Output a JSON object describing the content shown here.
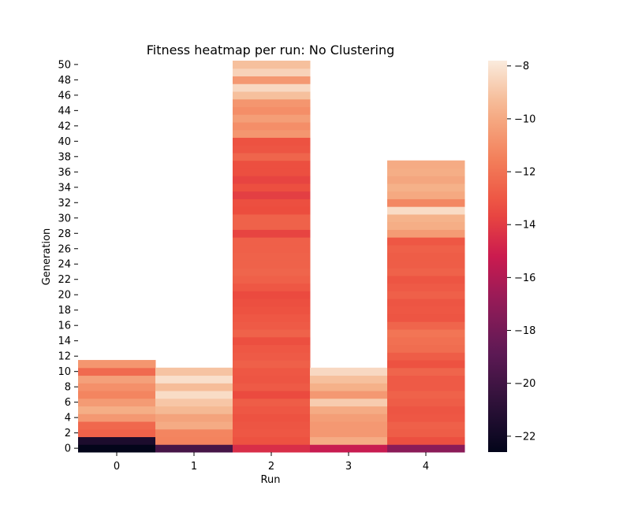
{
  "chart_data": {
    "type": "heatmap",
    "title": "Fitness heatmap per run: No Clustering",
    "xlabel": "Run",
    "ylabel": "Generation",
    "x_categories": [
      "0",
      "1",
      "2",
      "3",
      "4"
    ],
    "y_ticks": [
      0,
      2,
      4,
      6,
      8,
      10,
      12,
      14,
      16,
      18,
      20,
      22,
      24,
      26,
      28,
      30,
      32,
      34,
      36,
      38,
      40,
      42,
      44,
      46,
      48,
      50
    ],
    "y_range": [
      0,
      50
    ],
    "colorbar": {
      "colormap": "rocket",
      "range": [
        -22.6,
        -7.8
      ],
      "ticks": [
        -22,
        -20,
        -18,
        -16,
        -14,
        -12,
        -10,
        -8
      ],
      "tick_labels": [
        "−22",
        "−20",
        "−18",
        "−16",
        "−14",
        "−12",
        "−10",
        "−8"
      ]
    },
    "series": [
      {
        "name": "0",
        "values": [
          -22.6,
          -21.5,
          -12.6,
          -12.4,
          -10.6,
          -9.8,
          -10.5,
          -11.3,
          -10.9,
          -10.3,
          -12.3,
          -10.7
        ]
      },
      {
        "name": "1",
        "values": [
          -19.8,
          -11.4,
          -11.3,
          -9.9,
          -10.2,
          -9.4,
          -9.0,
          -8.3,
          -9.3,
          -8.2,
          -9.1
        ]
      },
      {
        "name": "2",
        "values": [
          -14.5,
          -13.2,
          -13.0,
          -13.1,
          -13.2,
          -13.0,
          -12.8,
          -13.5,
          -12.9,
          -13.1,
          -13.0,
          -12.7,
          -12.9,
          -13.0,
          -13.3,
          -12.6,
          -12.9,
          -13.0,
          -13.2,
          -13.3,
          -13.5,
          -13.0,
          -12.7,
          -12.5,
          -12.6,
          -12.6,
          -12.7,
          -12.7,
          -13.7,
          -12.6,
          -12.6,
          -13.4,
          -13.3,
          -13.9,
          -13.3,
          -13.7,
          -13.3,
          -13.3,
          -12.5,
          -13.1,
          -13.2,
          -10.7,
          -11.0,
          -10.4,
          -11.0,
          -10.7,
          -9.2,
          -8.4,
          -10.6,
          -8.6,
          -9.2
        ]
      },
      {
        "name": "3",
        "values": [
          -15.3,
          -9.9,
          -10.6,
          -10.6,
          -10.4,
          -9.9,
          -8.8,
          -10.6,
          -9.7,
          -9.2,
          -8.4
        ]
      },
      {
        "name": "4",
        "values": [
          -17.2,
          -13.3,
          -12.8,
          -12.7,
          -13.0,
          -13.1,
          -12.8,
          -12.6,
          -12.9,
          -12.9,
          -12.5,
          -13.2,
          -12.8,
          -12.2,
          -12.1,
          -11.9,
          -12.5,
          -13.1,
          -13.0,
          -13.1,
          -12.7,
          -12.9,
          -13.1,
          -12.6,
          -12.8,
          -12.8,
          -12.7,
          -13.0,
          -10.5,
          -9.8,
          -9.6,
          -8.3,
          -11.2,
          -10.0,
          -9.7,
          -10.1,
          -9.8,
          -9.9
        ]
      }
    ]
  }
}
